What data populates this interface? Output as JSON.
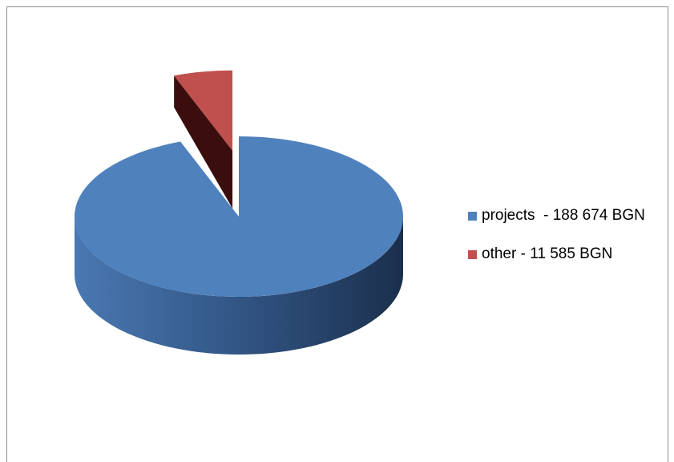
{
  "chart_data": {
    "type": "pie",
    "style": "3d-exploded",
    "title": "",
    "legend_position": "right",
    "slices": [
      {
        "label": "projects  - 188 674 BGN",
        "value": 188674,
        "color": "#4F81BD"
      },
      {
        "label": "other - 11 585 BGN",
        "value": 11585,
        "color": "#C0504D",
        "exploded": true
      }
    ]
  }
}
